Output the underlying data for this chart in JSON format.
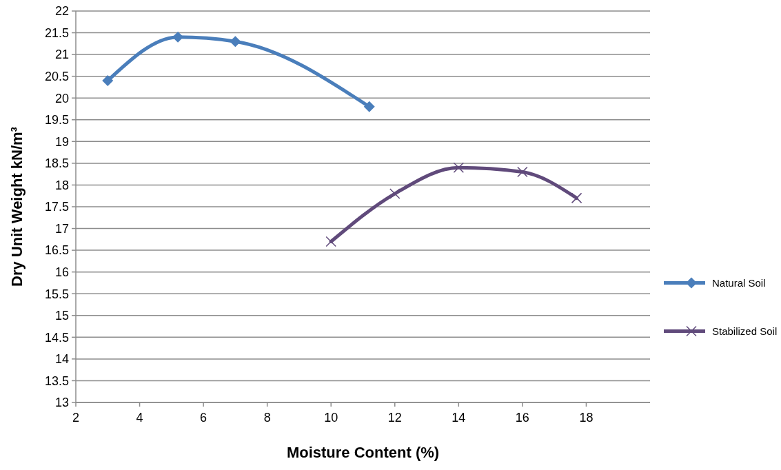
{
  "chart_data": {
    "type": "line",
    "xlabel": "Moisture Content (%)",
    "ylabel": "Dry Unit Weight kN/m³",
    "xlim": [
      2,
      20
    ],
    "xticks": [
      2,
      4,
      6,
      8,
      10,
      12,
      14,
      16,
      18
    ],
    "ylim": [
      13,
      22
    ],
    "yticks": [
      13,
      13.5,
      14,
      14.5,
      15,
      15.5,
      16,
      16.5,
      17,
      17.5,
      18,
      18.5,
      19,
      19.5,
      20,
      20.5,
      21,
      21.5,
      22
    ],
    "grid": "y",
    "legend": "right",
    "series": [
      {
        "name": "Natural Soil",
        "color": "#4a7ebb",
        "marker": "diamond",
        "x": [
          3,
          5.2,
          7,
          11.2
        ],
        "values": [
          20.4,
          21.4,
          21.3,
          19.8
        ]
      },
      {
        "name": "Stabilized Soil",
        "color": "#604a7b",
        "marker": "cross",
        "x": [
          10,
          12,
          14,
          16,
          17.7
        ],
        "values": [
          16.7,
          17.8,
          18.4,
          18.3,
          17.7
        ]
      }
    ]
  }
}
